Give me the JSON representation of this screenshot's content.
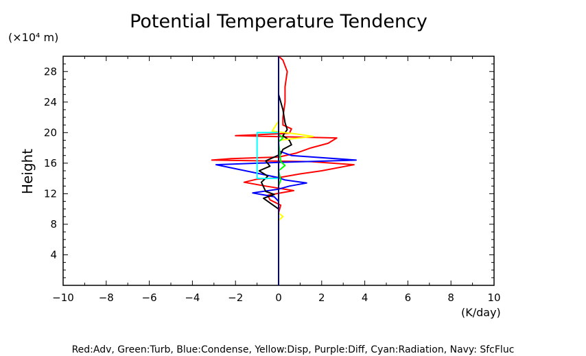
{
  "chart_data": {
    "type": "line",
    "title": "Potential Temperature Tendency",
    "ylabel": "Height",
    "yunit_label": "(×10⁴ m)",
    "xunit_label": "(K/day)",
    "xlim": [
      -10,
      10
    ],
    "ylim": [
      0,
      30
    ],
    "x_ticks": [
      -10,
      -8,
      -6,
      -4,
      -2,
      0,
      2,
      4,
      6,
      8,
      10
    ],
    "y_ticks": [
      4,
      8,
      12,
      16,
      20,
      24,
      28
    ],
    "legend_text": "Red:Adv, Green:Turb, Blue:Condense, Yellow:Disp, Purple:Diff, Cyan:Radiation, Navy: SfcFluc",
    "series": [
      {
        "color": "#ff0000",
        "points": [
          [
            0,
            7.5
          ],
          [
            0.0,
            9.5
          ],
          [
            0.1,
            10.5
          ],
          [
            -0.4,
            11.2
          ],
          [
            -0.5,
            11.8
          ],
          [
            0.7,
            12.4
          ],
          [
            -0.6,
            13.0
          ],
          [
            -1.6,
            13.5
          ],
          [
            -1.0,
            13.9
          ],
          [
            0.0,
            14.1
          ],
          [
            1.0,
            14.6
          ],
          [
            2.0,
            15.0
          ],
          [
            3.5,
            15.8
          ],
          [
            1.5,
            16.2
          ],
          [
            -3.1,
            16.4
          ],
          [
            -2.2,
            16.6
          ],
          [
            0.0,
            16.8
          ],
          [
            0.8,
            17.3
          ],
          [
            1.5,
            18.0
          ],
          [
            2.3,
            18.6
          ],
          [
            2.7,
            19.3
          ],
          [
            -2.0,
            19.6
          ],
          [
            0.5,
            19.9
          ],
          [
            0.6,
            20.5
          ],
          [
            0.2,
            21.0
          ],
          [
            0.2,
            22.0
          ],
          [
            0.3,
            24.0
          ],
          [
            0.3,
            26.0
          ],
          [
            0.4,
            28.0
          ],
          [
            0.2,
            29.5
          ],
          [
            0.0,
            30.0
          ]
        ]
      },
      {
        "color": "#0000ff",
        "points": [
          [
            0,
            9.5
          ],
          [
            0.0,
            11.0
          ],
          [
            -0.2,
            11.6
          ],
          [
            -1.2,
            12.1
          ],
          [
            0.0,
            12.6
          ],
          [
            0.5,
            13.0
          ],
          [
            1.3,
            13.4
          ],
          [
            0.3,
            13.8
          ],
          [
            0.0,
            14.1
          ],
          [
            -2.9,
            15.8
          ],
          [
            0.0,
            16.1
          ],
          [
            3.6,
            16.4
          ],
          [
            0.6,
            17.0
          ],
          [
            0.0,
            17.6
          ],
          [
            0.0,
            19.0
          ]
        ]
      },
      {
        "color": "#000000",
        "points": [
          [
            0,
            8.0
          ],
          [
            0.0,
            10.0
          ],
          [
            -0.4,
            10.8
          ],
          [
            -0.7,
            11.4
          ],
          [
            -0.2,
            11.9
          ],
          [
            -0.6,
            12.3
          ],
          [
            -0.8,
            13.5
          ],
          [
            -0.5,
            14.3
          ],
          [
            -0.9,
            15.0
          ],
          [
            -0.4,
            15.6
          ],
          [
            -0.6,
            16.3
          ],
          [
            -0.2,
            16.8
          ],
          [
            0.1,
            17.2
          ],
          [
            0.2,
            17.8
          ],
          [
            0.6,
            18.4
          ],
          [
            0.5,
            19.0
          ],
          [
            0.2,
            19.6
          ],
          [
            0.4,
            20.4
          ],
          [
            0.3,
            21.3
          ],
          [
            0.2,
            23.0
          ],
          [
            0.0,
            25.0
          ]
        ]
      },
      {
        "color": "#ffff00",
        "points": [
          [
            0,
            8.5
          ],
          [
            0.2,
            9.0
          ],
          [
            0.0,
            9.5
          ],
          [
            0.0,
            19.0
          ],
          [
            1.6,
            19.5
          ],
          [
            0.9,
            19.8
          ],
          [
            -0.3,
            20.2
          ],
          [
            0.0,
            21.5
          ],
          [
            0.0,
            24.0
          ]
        ]
      },
      {
        "color": "#00ff00",
        "points": [
          [
            0,
            0.0
          ],
          [
            0.0,
            13.0
          ],
          [
            0.1,
            13.8
          ],
          [
            0.0,
            15.0
          ],
          [
            0.3,
            15.7
          ],
          [
            0.1,
            16.2
          ],
          [
            0.0,
            18.8
          ],
          [
            0.2,
            19.3
          ],
          [
            0.0,
            19.8
          ],
          [
            0.0,
            30.0
          ]
        ]
      },
      {
        "color": "#00ffff",
        "points": [
          [
            0,
            0.0
          ],
          [
            0.0,
            14.0
          ],
          [
            -1.0,
            14.0
          ],
          [
            -1.0,
            20.0
          ],
          [
            0.0,
            20.0
          ],
          [
            0.0,
            30.0
          ]
        ]
      },
      {
        "color": "#000080",
        "points": [
          [
            0,
            0.0
          ],
          [
            0,
            30.0
          ]
        ]
      }
    ]
  }
}
